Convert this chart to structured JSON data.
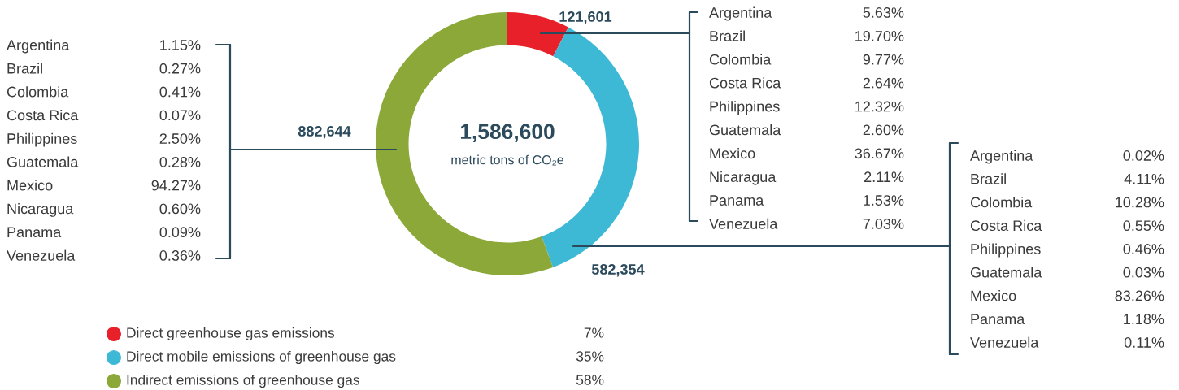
{
  "chart_data": [
    {
      "type": "donut",
      "title": "1,586,600",
      "subtitle": "metric tons of CO₂e",
      "categories": [
        "Direct greenhouse gas emissions",
        "Direct mobile emissions of greenhouse gas",
        "Indirect emissions of greenhouse gas"
      ],
      "values": [
        121601,
        582354,
        882644
      ],
      "value_labels": [
        "121,601",
        "582,354",
        "882,644"
      ],
      "colors": [
        "#e8202a",
        "#3db9d6",
        "#8ba838"
      ],
      "annotations": [
        "7%",
        "35%",
        "58%"
      ],
      "legend": "bottom"
    },
    {
      "type": "other",
      "categories": [
        "Argentina",
        "Brazil",
        "Colombia",
        "Costa Rica",
        "Philippines",
        "Guatemala",
        "Mexico",
        "Nicaragua",
        "Panama",
        "Venezuela"
      ],
      "value_labels": [
        "1.15%",
        "0.27%",
        "0.41%",
        "0.07%",
        "2.50%",
        "0.28%",
        "94.27%",
        "0.60%",
        "0.09%",
        "0.36%"
      ]
    },
    {
      "type": "other",
      "categories": [
        "Argentina",
        "Brazil",
        "Colombia",
        "Costa Rica",
        "Philippines",
        "Guatemala",
        "Mexico",
        "Nicaragua",
        "Panama",
        "Venezuela"
      ],
      "value_labels": [
        "5.63%",
        "19.70%",
        "9.77%",
        "2.64%",
        "12.32%",
        "2.60%",
        "36.67%",
        "2.11%",
        "1.53%",
        "7.03%"
      ]
    },
    {
      "type": "other",
      "categories": [
        "Argentina",
        "Brazil",
        "Colombia",
        "Costa Rica",
        "Philippines",
        "Guatemala",
        "Mexico",
        "Panama",
        "Venezuela"
      ],
      "value_labels": [
        "0.02%",
        "4.11%",
        "10.28%",
        "0.55%",
        "0.46%",
        "0.03%",
        "83.26%",
        "1.18%",
        "0.11%"
      ]
    }
  ]
}
